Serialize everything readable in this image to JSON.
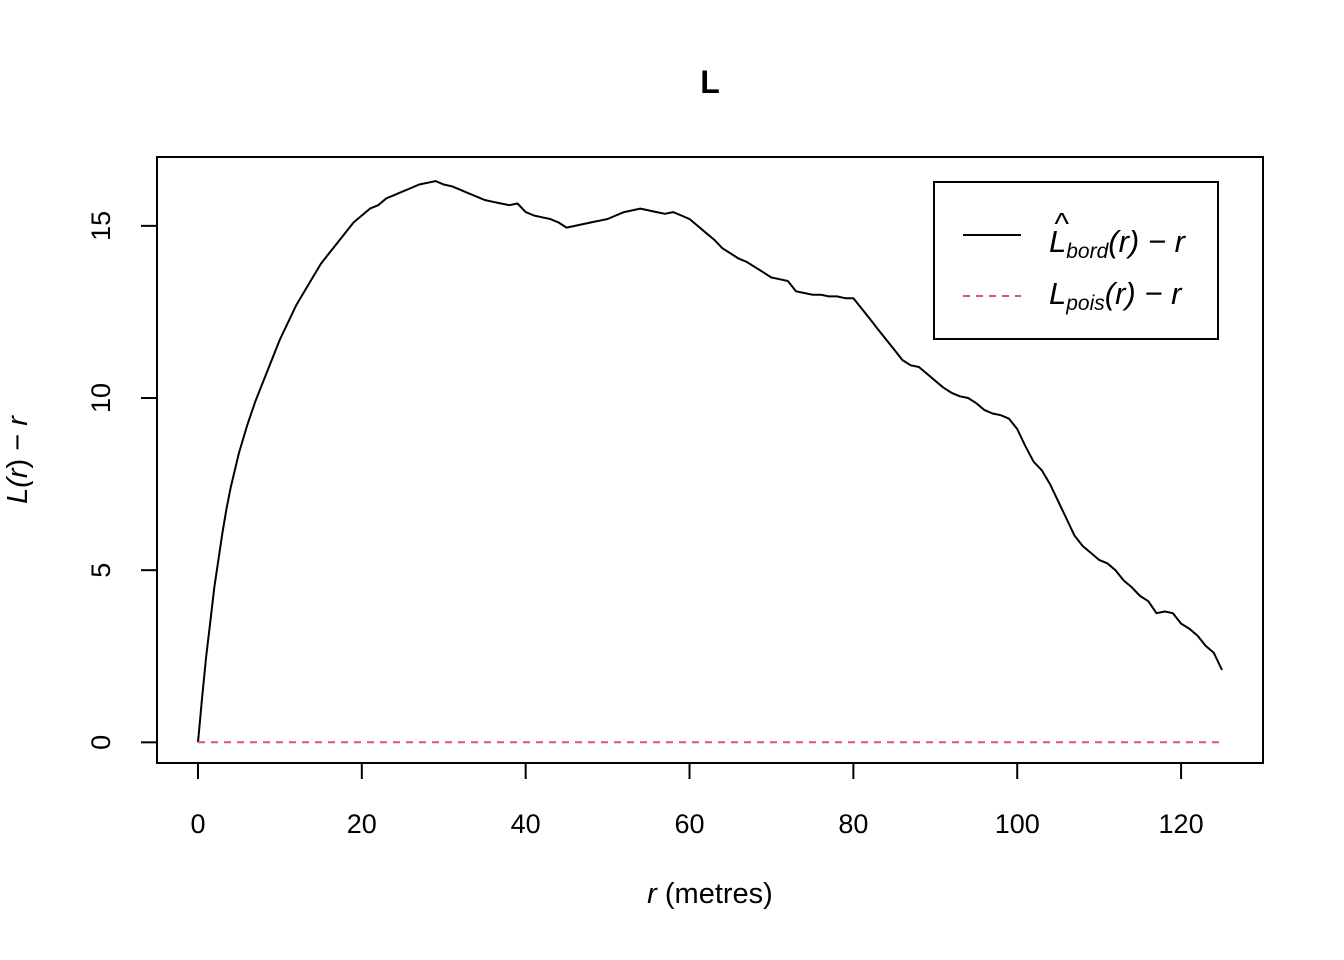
{
  "chart_data": {
    "type": "line",
    "title": "L",
    "xlabel": {
      "var": "r",
      "unit": " (metres)"
    },
    "ylabel": {
      "pre": "L(",
      "var": "r",
      "post": ") − ",
      "var2": "r"
    },
    "xlim": [
      -5,
      130
    ],
    "ylim": [
      -0.6,
      17
    ],
    "xticks": [
      0,
      20,
      40,
      60,
      80,
      100,
      120
    ],
    "yticks": [
      0,
      5,
      10,
      15
    ],
    "xtick_labels": [
      "0",
      "20",
      "40",
      "60",
      "80",
      "100",
      "120"
    ],
    "ytick_labels": [
      "0",
      "5",
      "10",
      "15"
    ],
    "legend_position": "top-right",
    "series": [
      {
        "name": "bord",
        "legend": {
          "main": "L",
          "hat": "^",
          "sub": "bord",
          "tail": "(r) − r"
        },
        "color": "#000000",
        "style": "solid",
        "x": [
          0,
          0.5,
          1,
          1.5,
          2,
          2.5,
          3,
          3.5,
          4,
          5,
          6,
          7,
          8,
          9,
          10,
          11,
          12,
          13,
          14,
          15,
          16,
          17,
          18,
          19,
          20,
          21,
          22,
          23,
          24,
          25,
          26,
          27,
          28,
          29,
          30,
          31,
          32,
          33,
          34,
          35,
          36,
          37,
          38,
          39,
          40,
          41,
          42,
          43,
          44,
          45,
          46,
          47,
          48,
          49,
          50,
          51,
          52,
          53,
          54,
          55,
          56,
          57,
          58,
          59,
          60,
          61,
          62,
          63,
          64,
          65,
          66,
          67,
          68,
          69,
          70,
          71,
          72,
          73,
          74,
          75,
          76,
          77,
          78,
          79,
          80,
          81,
          82,
          83,
          84,
          85,
          86,
          87,
          88,
          89,
          90,
          91,
          92,
          93,
          94,
          95,
          96,
          97,
          98,
          99,
          100,
          101,
          102,
          103,
          104,
          105,
          106,
          107,
          108,
          109,
          110,
          111,
          112,
          113,
          114,
          115,
          116,
          117,
          118,
          119,
          120,
          121,
          122,
          123,
          124,
          125
        ],
        "y": [
          0,
          1.3,
          2.5,
          3.5,
          4.5,
          5.3,
          6.1,
          6.8,
          7.4,
          8.4,
          9.2,
          9.9,
          10.5,
          11.1,
          11.7,
          12.2,
          12.7,
          13.1,
          13.5,
          13.9,
          14.2,
          14.5,
          14.8,
          15.1,
          15.3,
          15.5,
          15.6,
          15.8,
          15.9,
          16.0,
          16.1,
          16.2,
          16.25,
          16.3,
          16.2,
          16.15,
          16.05,
          15.95,
          15.85,
          15.75,
          15.7,
          15.65,
          15.6,
          15.65,
          15.4,
          15.3,
          15.25,
          15.2,
          15.1,
          14.95,
          15.0,
          15.05,
          15.1,
          15.15,
          15.2,
          15.3,
          15.4,
          15.45,
          15.5,
          15.45,
          15.4,
          15.35,
          15.4,
          15.3,
          15.2,
          15.0,
          14.8,
          14.6,
          14.35,
          14.2,
          14.05,
          13.95,
          13.8,
          13.65,
          13.5,
          13.45,
          13.4,
          13.1,
          13.05,
          13.0,
          13.0,
          12.95,
          12.95,
          12.9,
          12.9,
          12.6,
          12.3,
          12.0,
          11.7,
          11.4,
          11.1,
          10.95,
          10.9,
          10.7,
          10.5,
          10.3,
          10.15,
          10.05,
          10.0,
          9.85,
          9.65,
          9.55,
          9.5,
          9.4,
          9.1,
          8.6,
          8.15,
          7.9,
          7.5,
          7.0,
          6.5,
          6.0,
          5.7,
          5.5,
          5.3,
          5.2,
          5.0,
          4.7,
          4.5,
          4.25,
          4.1,
          3.75,
          3.8,
          3.75,
          3.45,
          3.3,
          3.1,
          2.8,
          2.6,
          2.1
        ]
      },
      {
        "name": "pois",
        "legend": {
          "main": "L",
          "hat": "",
          "sub": "pois",
          "tail": "(r) − r"
        },
        "color": "#DF536B",
        "style": "dashed",
        "x": [
          0,
          125
        ],
        "y": [
          0,
          0
        ]
      }
    ]
  }
}
